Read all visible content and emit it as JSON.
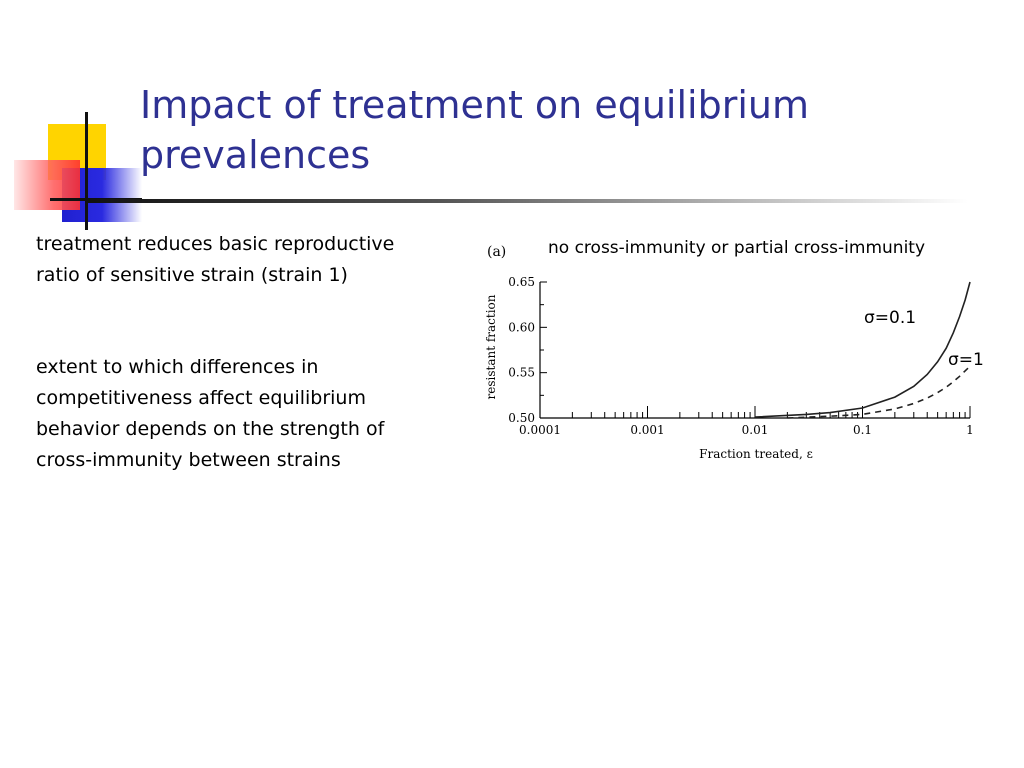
{
  "slide": {
    "title": "Impact of treatment on equilibrium prevalences",
    "paragraph1": "treatment reduces basic reproductive ratio of sensitive strain (strain 1)",
    "paragraph2": "extent to which differences in competitiveness affect equilibrium behavior depends on the strength of cross-immunity between strains",
    "chart_caption": "no cross-immunity or partial cross-immunity"
  },
  "chart_data": {
    "type": "line",
    "panel_label": "(a)",
    "title": "",
    "xlabel": "Fraction treated, ε",
    "ylabel": "resistant fraction",
    "xscale": "log",
    "xlim": [
      0.0001,
      1
    ],
    "ylim": [
      0.5,
      0.65
    ],
    "xticks": [
      0.0001,
      0.001,
      0.01,
      0.1,
      1
    ],
    "xtick_labels": [
      "0.0001",
      "0.001",
      "0.01",
      "0.1",
      "1"
    ],
    "yticks": [
      0.5,
      0.55,
      0.6,
      0.65
    ],
    "ytick_labels": [
      "0.50",
      "0.55",
      "0.60",
      "0.65"
    ],
    "grid": false,
    "legend": "none",
    "series": [
      {
        "name": "σ=0.1",
        "style": "solid",
        "x": [
          0.01,
          0.03,
          0.05,
          0.1,
          0.2,
          0.3,
          0.4,
          0.5,
          0.6,
          0.7,
          0.8,
          0.9,
          1.0
        ],
        "y": [
          0.501,
          0.504,
          0.506,
          0.511,
          0.523,
          0.535,
          0.548,
          0.562,
          0.577,
          0.594,
          0.612,
          0.63,
          0.65
        ]
      },
      {
        "name": "σ=1",
        "style": "dashed",
        "x": [
          0.02,
          0.05,
          0.1,
          0.2,
          0.3,
          0.4,
          0.5,
          0.6,
          0.7,
          0.8,
          0.9,
          1.0
        ],
        "y": [
          0.5,
          0.502,
          0.504,
          0.51,
          0.516,
          0.522,
          0.528,
          0.534,
          0.54,
          0.546,
          0.552,
          0.557
        ]
      }
    ]
  }
}
